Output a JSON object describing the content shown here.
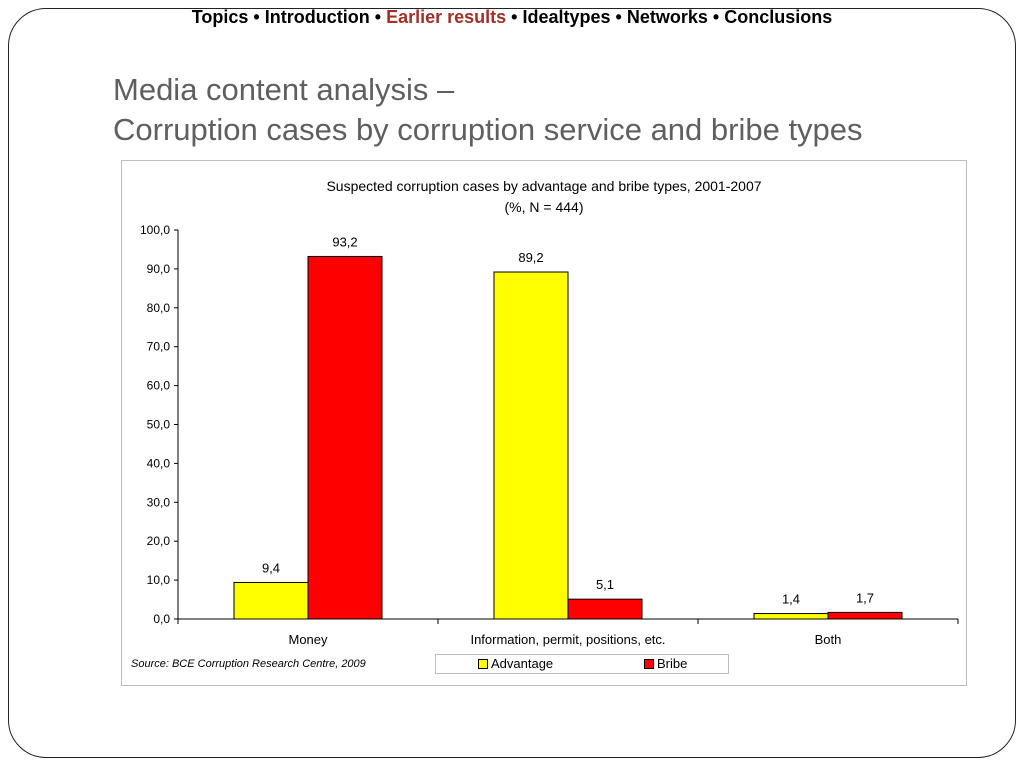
{
  "nav": {
    "items": [
      "Topics",
      "Introduction",
      "Earlier results",
      "Idealtypes",
      "Networks",
      "Conclusions"
    ],
    "separator": "•",
    "active_item": "Earlier results",
    "active_color": "#a0302a"
  },
  "title": {
    "line1": "Media content analysis –",
    "line2": "Corruption cases by corruption service and bribe types"
  },
  "chart_data": {
    "type": "bar",
    "title": "Suspected corruption cases by advantage and bribe types, 2001-2007",
    "subtitle": "(%, N = 444)",
    "categories": [
      "Money",
      "Information, permit, positions, etc.",
      "Both"
    ],
    "series": [
      {
        "name": "Advantage",
        "color": "#ffff00",
        "values": [
          9.4,
          89.2,
          1.4
        ],
        "labels": [
          "9,4",
          "89,2",
          "1,4"
        ]
      },
      {
        "name": "Bribe",
        "color": "#ff0000",
        "values": [
          93.2,
          5.1,
          1.7
        ],
        "labels": [
          "93,2",
          "5,1",
          "1,7"
        ]
      }
    ],
    "ylim": [
      0,
      100
    ],
    "yticks": [
      0,
      10,
      20,
      30,
      40,
      50,
      60,
      70,
      80,
      90,
      100
    ],
    "ytick_labels": [
      "0,0",
      "10,0",
      "20,0",
      "30,0",
      "40,0",
      "50,0",
      "60,0",
      "70,0",
      "80,0",
      "90,0",
      "100,0"
    ],
    "grid": false,
    "legend": "bottom",
    "source": "Source: BCE Corruption Research Centre, 2009"
  }
}
